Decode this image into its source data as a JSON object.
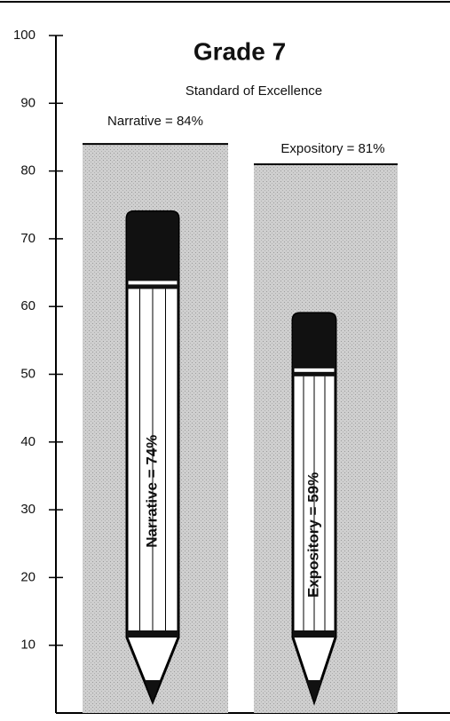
{
  "chart_data": {
    "type": "bar",
    "title": "Grade 7",
    "series": [
      {
        "name": "Standard of Excellence",
        "color": "#c6c6c6",
        "values": [
          84,
          81
        ],
        "value_labels": [
          "Narrative = 84%",
          "Expository = 81%"
        ]
      },
      {
        "color": "#111111",
        "values": [
          74,
          59
        ],
        "value_labels": [
          "Narrative = 74%",
          "Expository = 59%"
        ]
      }
    ],
    "ylim": [
      0,
      100
    ],
    "yticks": [
      10,
      20,
      30,
      40,
      50,
      60,
      70,
      80,
      90,
      100
    ]
  }
}
